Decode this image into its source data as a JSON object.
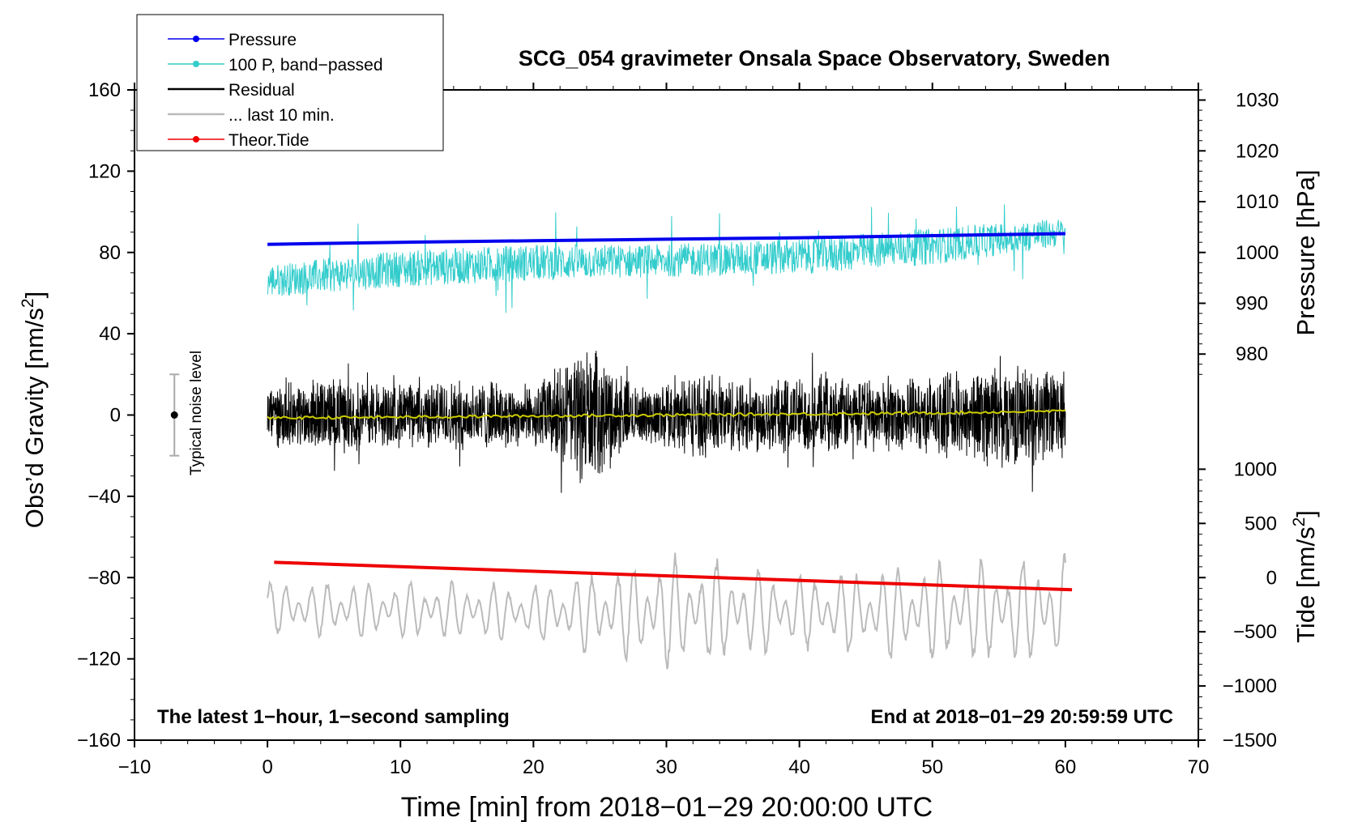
{
  "chart_data": {
    "type": "line",
    "title": "SCG_054 gravimeter Onsala Space Observatory, Sweden",
    "xlabel": "Time [min] from 2018−01−29 20:00:00 UTC",
    "ylabel_main": "Obs’d Gravity [nm/s",
    "ylabel_sup": "2",
    "ylabel_close": "]",
    "y2label": "Pressure [hPa]",
    "y3label_main": "Tide [nm/s",
    "y3label_sup": "2",
    "y3label_close": "]",
    "xlim": [
      -10,
      70
    ],
    "ylim": [
      -160,
      160
    ],
    "x_ticks": [
      -10,
      0,
      10,
      20,
      30,
      40,
      50,
      60,
      70
    ],
    "x_tick_labels": [
      "−10",
      "0",
      "10",
      "20",
      "30",
      "40",
      "50",
      "60",
      "70"
    ],
    "y_ticks": [
      160,
      120,
      80,
      40,
      0,
      -40,
      -80,
      -120,
      -160
    ],
    "y_tick_labels": [
      "160",
      "120",
      "80",
      "40",
      "0",
      "−40",
      "−80",
      "−120",
      "−160"
    ],
    "pressure_axis": {
      "ticks": [
        1030,
        1020,
        1010,
        1000,
        990,
        980
      ],
      "tick_labels": [
        "1030",
        "1020",
        "1010",
        "1000",
        "990",
        "980"
      ],
      "value_at_gravity_80": 1000,
      "hPa_per_gravity_unit": 0.4
    },
    "tide_axis": {
      "ticks": [
        1000,
        500,
        0,
        -500,
        -1000,
        -1500
      ],
      "tick_labels": [
        "1000",
        "500",
        "0",
        "−500",
        "−1000",
        "−1500"
      ],
      "value_at_gravity_minus80": 0,
      "tide_per_gravity_unit": 18.75
    },
    "legend": [
      {
        "label": "Pressure",
        "color": "#0000ee",
        "marker": true
      },
      {
        "label": "100 P, band−passed",
        "color": "#33cccc",
        "marker": true
      },
      {
        "label": "Residual",
        "color": "#000000",
        "marker": false
      },
      {
        "label": "... last 10 min.",
        "color": "#bbbbbb",
        "marker": false
      },
      {
        "label": "Theor.Tide",
        "color": "#ee0000",
        "marker": true
      }
    ],
    "legend_position": "top-left",
    "noise_label": "Typical noise level",
    "noise_bar": {
      "x": -7,
      "center": 0,
      "half_range": 20
    },
    "footer_left": "The latest 1−hour, 1−second sampling",
    "footer_right": "End at 2018−01−29 20:59:59 UTC",
    "series": [
      {
        "name": "Pressure",
        "color": "#0000ee",
        "axis": "pressure",
        "x": [
          0,
          10,
          20,
          30,
          40,
          50,
          60
        ],
        "values": [
          1001.6,
          1002.0,
          1002.3,
          1002.6,
          1002.9,
          1003.3,
          1003.7
        ]
      },
      {
        "name": "100 P, band−passed",
        "color": "#33cccc",
        "axis": "gravity",
        "x": [
          0,
          10,
          20,
          30,
          40,
          50,
          60
        ],
        "center": [
          66,
          72,
          75,
          76,
          78,
          83,
          90
        ],
        "amplitude": [
          8,
          9,
          9,
          8,
          9,
          9,
          7
        ]
      },
      {
        "name": "Residual",
        "color": "#000000",
        "axis": "gravity",
        "x": [
          0,
          5,
          10,
          15,
          20,
          24,
          28,
          32,
          36,
          40,
          45,
          50,
          55,
          60
        ],
        "center": [
          0,
          0,
          0,
          0,
          0,
          0,
          0,
          0,
          0,
          0,
          0,
          0,
          0,
          0
        ],
        "envelope": [
          16,
          20,
          17,
          19,
          16,
          38,
          14,
          22,
          20,
          21,
          19,
          20,
          28,
          24
        ]
      },
      {
        "name": "Residual (smoothed)",
        "color": "#cccc00",
        "axis": "gravity",
        "x": [
          0,
          10,
          20,
          30,
          40,
          50,
          60
        ],
        "values": [
          -1.5,
          -1,
          -0.5,
          0,
          0.5,
          1,
          2
        ]
      },
      {
        "name": "Theor.Tide",
        "color": "#ee0000",
        "axis": "gravity",
        "x": [
          0.5,
          60.5
        ],
        "values": [
          -72.5,
          -86
        ]
      },
      {
        "name": "... last 10 min.",
        "color": "#bbbbbb",
        "axis": "gravity",
        "x": [
          0,
          10,
          20,
          30,
          40,
          50,
          60
        ],
        "center": [
          -95,
          -96,
          -97,
          -97,
          -97,
          -97,
          -97
        ],
        "amplitude": [
          12,
          13,
          13,
          26,
          17,
          22,
          26
        ]
      }
    ]
  }
}
